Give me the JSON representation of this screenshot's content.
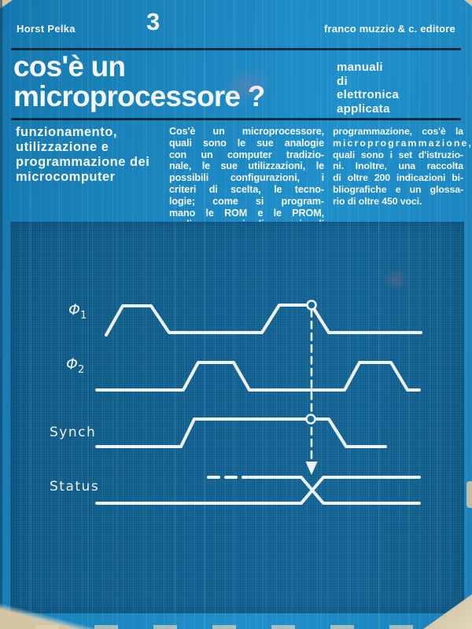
{
  "header": {
    "author": "Horst Pelka",
    "series_number": "3",
    "publisher": "franco muzzio & c. editore"
  },
  "title": {
    "line1": "cos'è un",
    "line2": "microprocessore ?"
  },
  "series": {
    "lines": [
      "manuali",
      "di",
      "elettronica",
      "applicata"
    ]
  },
  "subtitle": {
    "lines": [
      "funzionamento,",
      "utilizzazione e",
      "programmazione dei",
      "microcomputer"
    ]
  },
  "blurb": {
    "col1": [
      "Cos'è un microprocessore,",
      "quali sono le sue analogie",
      "con un computer tradizio-",
      "nale, le sue utilizzazioni, le",
      "possibili configurazioni, i",
      "criteri di scelta, le tecno-",
      "logie; come si program-",
      "mano le ROM e le PROM,",
      "quali sono i linguaggi di"
    ],
    "col2": [
      "programmazione, cos'è la",
      "microprogrammazione,",
      "quali sono i set d'istruzio-",
      "ni. Inoltre, una raccolta",
      "di oltre 200 indicazioni bi-",
      "bliografiche e un glossa-",
      "rio di oltre 450 voci."
    ]
  },
  "diagram": {
    "type": "timing-diagram",
    "phi1": {
      "sym": "Φ",
      "sub": "1"
    },
    "phi2": {
      "sym": "Φ",
      "sub": "2"
    },
    "synch_label": "Synch",
    "status_label": "Status",
    "signals": [
      "Φ1",
      "Φ2",
      "Synch",
      "Status"
    ]
  },
  "colors": {
    "cover_blue": "#1b84bd",
    "panel_blue": "#16699a",
    "rule_dark": "#0d2940",
    "text_white": "#f3f7f8",
    "paper_beige": "#d3c5a4"
  }
}
